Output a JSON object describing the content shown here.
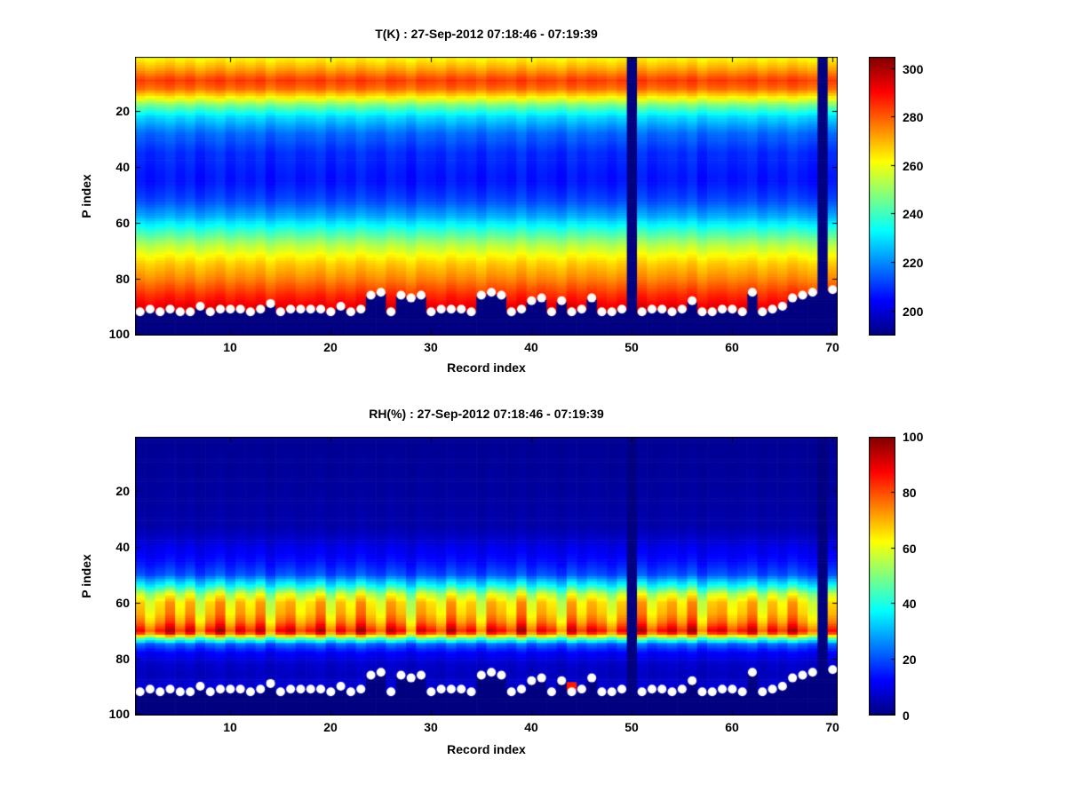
{
  "figure": {
    "background": "#ffffff",
    "frame_color": "#000000",
    "dot_color": "#ffffff"
  },
  "chart_data": [
    {
      "type": "heatmap",
      "title": "T(K) : 27-Sep-2012 07:18:46 - 07:19:39",
      "xlabel": "Record index",
      "ylabel": "P index",
      "x_ticks": [
        10,
        20,
        30,
        40,
        50,
        60,
        70
      ],
      "y_ticks": [
        20,
        40,
        60,
        80,
        100
      ],
      "x_range": [
        1,
        70
      ],
      "y_range": [
        1,
        100
      ],
      "y_axis_reversed": true,
      "colormap": "jet",
      "clim": [
        190,
        305
      ],
      "colorbar_ticks": [
        200,
        220,
        240,
        260,
        280,
        300
      ],
      "background_value": 190,
      "vertical_profile_points": [
        [
          1,
          262
        ],
        [
          5,
          272
        ],
        [
          9,
          284
        ],
        [
          12,
          278
        ],
        [
          15,
          263
        ],
        [
          18,
          246
        ],
        [
          22,
          229
        ],
        [
          28,
          216
        ],
        [
          35,
          209
        ],
        [
          45,
          206
        ],
        [
          52,
          212
        ],
        [
          58,
          224
        ],
        [
          63,
          239
        ],
        [
          68,
          253
        ],
        [
          74,
          266
        ],
        [
          80,
          275
        ],
        [
          85,
          284
        ],
        [
          90,
          293
        ],
        [
          94,
          298
        ]
      ],
      "jitter_mode": "add",
      "jitter_scale": 2.5,
      "anomaly": null
    },
    {
      "type": "heatmap",
      "title": "RH(%) : 27-Sep-2012 07:18:46 - 07:19:39",
      "xlabel": "Record index",
      "ylabel": "P index",
      "x_ticks": [
        10,
        20,
        30,
        40,
        50,
        60,
        70
      ],
      "y_ticks": [
        20,
        40,
        60,
        80,
        100
      ],
      "x_range": [
        1,
        70
      ],
      "y_range": [
        1,
        100
      ],
      "y_axis_reversed": true,
      "colormap": "jet",
      "clim": [
        0,
        100
      ],
      "colorbar_ticks": [
        0,
        20,
        40,
        60,
        80,
        100
      ],
      "background_value": 0,
      "vertical_profile_points": [
        [
          1,
          2
        ],
        [
          20,
          3
        ],
        [
          32,
          4
        ],
        [
          36,
          6
        ],
        [
          40,
          10
        ],
        [
          45,
          13
        ],
        [
          50,
          20
        ],
        [
          54,
          38
        ],
        [
          57,
          55
        ],
        [
          60,
          64
        ],
        [
          64,
          67
        ],
        [
          67,
          73
        ],
        [
          69,
          80
        ],
        [
          70,
          84
        ],
        [
          71,
          78
        ],
        [
          73,
          45
        ],
        [
          75,
          22
        ],
        [
          78,
          12
        ],
        [
          82,
          7
        ],
        [
          86,
          6
        ],
        [
          90,
          8
        ],
        [
          94,
          4
        ]
      ],
      "jitter_mode": "scale",
      "jitter_scale": 0.18,
      "anomaly": {
        "record": 44,
        "p_min": 89,
        "p_max": 91,
        "value": 85
      }
    }
  ],
  "shared": {
    "n_records": 70,
    "n_levels": 100,
    "missing_records": [
      50,
      69
    ],
    "surface_p_index": [
      92,
      91,
      92,
      91,
      92,
      92,
      90,
      92,
      91,
      91,
      91,
      92,
      91,
      89,
      92,
      91,
      91,
      91,
      91,
      92,
      90,
      92,
      91,
      86,
      85,
      92,
      86,
      87,
      86,
      92,
      91,
      91,
      91,
      92,
      86,
      85,
      86,
      92,
      91,
      88,
      87,
      92,
      88,
      92,
      91,
      87,
      92,
      92,
      91,
      null,
      92,
      91,
      91,
      92,
      91,
      88,
      92,
      92,
      91,
      91,
      92,
      85,
      92,
      91,
      90,
      87,
      86,
      85,
      null,
      84
    ],
    "record_jitter": [
      0.3,
      -0.5,
      0.1,
      0.8,
      -0.2,
      0.6,
      -0.7,
      0.2,
      0.9,
      -0.4,
      0.5,
      -0.1,
      0.7,
      -0.8,
      0.3,
      0.6,
      -0.3,
      0.1,
      0.8,
      -0.6,
      0.4,
      -0.2,
      0.9,
      0.0,
      -0.5,
      0.7,
      0.2,
      -0.9,
      0.5,
      0.1,
      -0.4,
      0.8,
      -0.1,
      0.3,
      -0.7,
      0.6,
      0.2,
      -0.3,
      0.9,
      -0.5,
      0.4,
      0.0,
      -0.8,
      0.7,
      -0.2,
      0.5,
      0.1,
      -0.6,
      0.3,
      0.0,
      0.8,
      -0.4,
      0.2,
      0.6,
      -0.1,
      0.9,
      -0.7,
      0.3,
      0.5,
      -0.3,
      0.1,
      0.7,
      -0.5,
      0.4,
      -0.2,
      0.8,
      0.0,
      -0.6,
      0.0,
      0.2
    ]
  }
}
